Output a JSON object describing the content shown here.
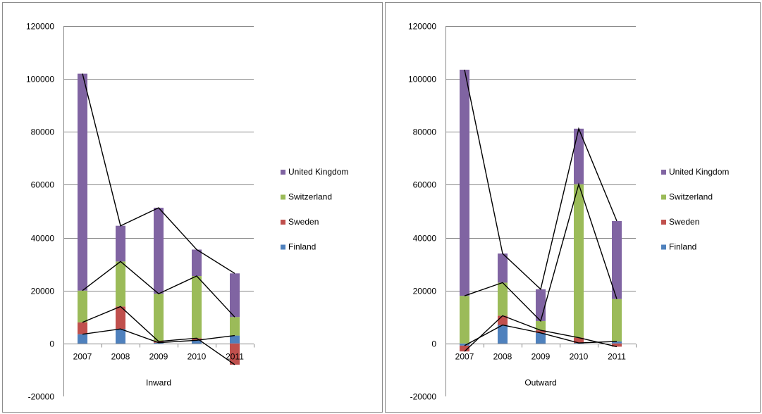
{
  "chart_data": [
    {
      "type": "bar",
      "stacked": true,
      "xlabel": "Inward",
      "categories": [
        "2007",
        "2008",
        "2009",
        "2010",
        "2011"
      ],
      "ylim": [
        -20000,
        120000
      ],
      "yticks": [
        "-20000",
        "0",
        "20000",
        "40000",
        "60000",
        "80000",
        "100000",
        "120000"
      ],
      "grid": true,
      "legend_position": "right",
      "series": [
        {
          "name": "Finland",
          "color": "#4F81BD",
          "values": [
            3500,
            5500,
            300,
            1200,
            3000
          ]
        },
        {
          "name": "Sweden",
          "color": "#C0504D",
          "values": [
            4500,
            8500,
            500,
            800,
            -8000
          ]
        },
        {
          "name": "Switzerland",
          "color": "#9BBB59",
          "values": [
            12000,
            17000,
            18000,
            23500,
            7000
          ]
        },
        {
          "name": "United Kingdom",
          "color": "#8064A2",
          "values": [
            82000,
            13500,
            32500,
            10000,
            16500
          ]
        }
      ]
    },
    {
      "type": "bar",
      "stacked": true,
      "xlabel": "Outward",
      "categories": [
        "2007",
        "2008",
        "2009",
        "2010",
        "2011"
      ],
      "ylim": [
        -20000,
        120000
      ],
      "yticks": [
        "-20000",
        "0",
        "20000",
        "40000",
        "60000",
        "80000",
        "100000",
        "120000"
      ],
      "grid": true,
      "legend_position": "right",
      "series": [
        {
          "name": "Finland",
          "color": "#4F81BD",
          "values": [
            -800,
            7000,
            4000,
            200,
            800
          ]
        },
        {
          "name": "Sweden",
          "color": "#C0504D",
          "values": [
            -2200,
            3500,
            1000,
            2000,
            -1200
          ]
        },
        {
          "name": "Switzerland",
          "color": "#9BBB59",
          "values": [
            18000,
            12500,
            3500,
            58000,
            16000
          ]
        },
        {
          "name": "United Kingdom",
          "color": "#8064A2",
          "values": [
            85500,
            11000,
            12000,
            21000,
            29500
          ]
        }
      ]
    }
  ]
}
